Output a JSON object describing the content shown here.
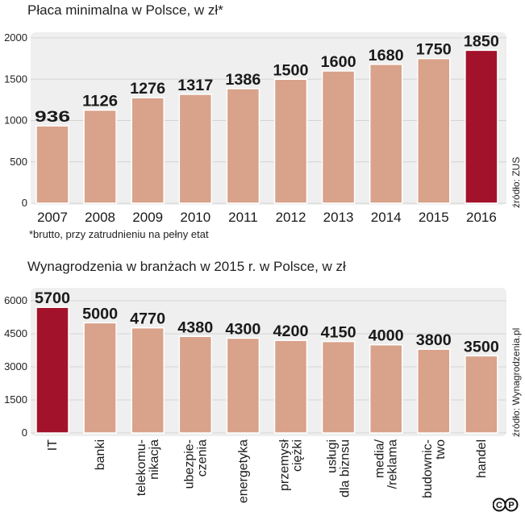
{
  "chart_data": [
    {
      "type": "bar",
      "title": "Płaca minimalna w Polsce, w zł*",
      "categories": [
        "2007",
        "2008",
        "2009",
        "2010",
        "2011",
        "2012",
        "2013",
        "2014",
        "2015",
        "2016"
      ],
      "values": [
        936,
        1126,
        1276,
        1317,
        1386,
        1500,
        1600,
        1680,
        1750,
        1850
      ],
      "highlight_index": 9,
      "ylim": [
        0,
        2000
      ],
      "yticks": [
        0,
        500,
        1000,
        1500,
        2000
      ],
      "footnote": "*brutto, przy zatrudnieniu na pełny etat",
      "source": "źródło: ZUS"
    },
    {
      "type": "bar",
      "title": "Wynagrodzenia w branżach w 2015 r. w Polsce, w zł",
      "categories": [
        "IT",
        "banki",
        "telekomu-\nnikacja",
        "ubezpie-\nczenia",
        "energetyka",
        "przemysł\nciężki",
        "usługi\ndla biznsu",
        "media/\n/reklama",
        "budownic-\ntwo",
        "handel"
      ],
      "values": [
        5700,
        5000,
        4770,
        4380,
        4300,
        4200,
        4150,
        4000,
        3800,
        3500
      ],
      "highlight_index": 0,
      "ylim": [
        0,
        6000
      ],
      "yticks": [
        0,
        1500,
        3000,
        4500,
        6000
      ],
      "source": "źródło: Wynagrodzenia.pl"
    }
  ],
  "colors": {
    "bar": "#d9a28b",
    "highlight": "#a3122b",
    "panel": "#efefef"
  },
  "logo_text": "©P"
}
